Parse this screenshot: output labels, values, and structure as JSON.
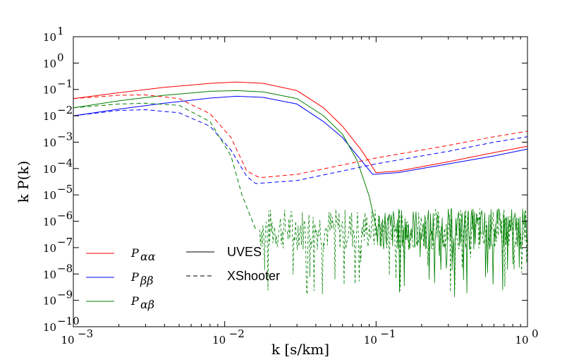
{
  "chart_data": {
    "type": "line",
    "xlabel": "k [s/km]",
    "ylabel": "k P(k)",
    "x_scale": "log",
    "y_scale": "log",
    "xlim": [
      0.001,
      1.0
    ],
    "ylim": [
      1e-10,
      10
    ],
    "grid": false,
    "legend_placement": "bottom-left",
    "x_ticks": [
      {
        "base": "10",
        "exp": "−3",
        "value": 0.001
      },
      {
        "base": "10",
        "exp": "−2",
        "value": 0.01
      },
      {
        "base": "10",
        "exp": "−1",
        "value": 0.1
      },
      {
        "base": "10",
        "exp": "0",
        "value": 1
      }
    ],
    "y_ticks": [
      {
        "base": "10",
        "exp": "1",
        "value": 10
      },
      {
        "base": "10",
        "exp": "0",
        "value": 1
      },
      {
        "base": "10",
        "exp": "−1",
        "value": 0.1
      },
      {
        "base": "10",
        "exp": "−2",
        "value": 0.01
      },
      {
        "base": "10",
        "exp": "−3",
        "value": 0.001
      },
      {
        "base": "10",
        "exp": "−4",
        "value": 0.0001
      },
      {
        "base": "10",
        "exp": "−5",
        "value": 1e-05
      },
      {
        "base": "10",
        "exp": "−6",
        "value": 1e-06
      },
      {
        "base": "10",
        "exp": "−7",
        "value": 1e-07
      },
      {
        "base": "10",
        "exp": "−8",
        "value": 1e-08
      },
      {
        "base": "10",
        "exp": "−9",
        "value": 1e-09
      },
      {
        "base": "10",
        "exp": "−10",
        "value": 1e-10
      }
    ],
    "legend": [
      {
        "label_main": "P",
        "label_sub": "αα",
        "color": "#ff0000",
        "dash": "solid"
      },
      {
        "label_main": "P",
        "label_sub": "ββ",
        "color": "#0000ff",
        "dash": "solid"
      },
      {
        "label_main": "P",
        "label_sub": "αβ",
        "color": "#008000",
        "dash": "solid"
      },
      {
        "label": "UVES",
        "color": "#000000",
        "dash": "solid"
      },
      {
        "label": "XShooter",
        "color": "#000000",
        "dash": "dashed"
      }
    ],
    "series": [
      {
        "key": "aa",
        "instrument": "UVES",
        "color": "#ff0000",
        "dash": "solid",
        "points": [
          [
            0.001,
            0.045
          ],
          [
            0.002,
            0.075
          ],
          [
            0.004,
            0.12
          ],
          [
            0.008,
            0.17
          ],
          [
            0.012,
            0.19
          ],
          [
            0.018,
            0.17
          ],
          [
            0.03,
            0.09
          ],
          [
            0.045,
            0.02
          ],
          [
            0.06,
            0.004
          ],
          [
            0.08,
            0.0005
          ],
          [
            0.1,
            7e-05
          ],
          [
            0.14,
            8e-05
          ],
          [
            0.3,
            0.00018
          ],
          [
            0.6,
            0.0004
          ],
          [
            1.0,
            0.0007
          ]
        ]
      },
      {
        "key": "bb",
        "instrument": "UVES",
        "color": "#0000ff",
        "dash": "solid",
        "points": [
          [
            0.001,
            0.01
          ],
          [
            0.002,
            0.018
          ],
          [
            0.004,
            0.03
          ],
          [
            0.008,
            0.047
          ],
          [
            0.012,
            0.055
          ],
          [
            0.018,
            0.05
          ],
          [
            0.03,
            0.028
          ],
          [
            0.045,
            0.006
          ],
          [
            0.06,
            0.0015
          ],
          [
            0.08,
            0.0002
          ],
          [
            0.095,
            6e-05
          ],
          [
            0.14,
            7e-05
          ],
          [
            0.3,
            0.00015
          ],
          [
            0.6,
            0.0003
          ],
          [
            1.0,
            0.00055
          ]
        ]
      },
      {
        "key": "ab",
        "instrument": "UVES",
        "color": "#008000",
        "dash": "solid",
        "points": [
          [
            0.001,
            0.02
          ],
          [
            0.002,
            0.037
          ],
          [
            0.004,
            0.06
          ],
          [
            0.008,
            0.085
          ],
          [
            0.012,
            0.09
          ],
          [
            0.018,
            0.08
          ],
          [
            0.03,
            0.045
          ],
          [
            0.045,
            0.01
          ],
          [
            0.06,
            0.002
          ],
          [
            0.075,
            0.0002
          ],
          [
            0.09,
            9e-06
          ],
          [
            0.1,
            6e-07
          ]
        ]
      },
      {
        "key": "aa",
        "instrument": "XShooter",
        "color": "#ff0000",
        "dash": "dashed",
        "points": [
          [
            0.001,
            0.045
          ],
          [
            0.002,
            0.06
          ],
          [
            0.003,
            0.062
          ],
          [
            0.005,
            0.045
          ],
          [
            0.008,
            0.012
          ],
          [
            0.011,
            0.0015
          ],
          [
            0.014,
            8e-05
          ],
          [
            0.017,
            4.5e-05
          ],
          [
            0.03,
            6e-05
          ],
          [
            0.1,
            0.00025
          ],
          [
            0.3,
            0.00075
          ],
          [
            0.6,
            0.0016
          ],
          [
            1.0,
            0.0026
          ]
        ]
      },
      {
        "key": "bb",
        "instrument": "XShooter",
        "color": "#0000ff",
        "dash": "dashed",
        "points": [
          [
            0.001,
            0.01
          ],
          [
            0.002,
            0.016
          ],
          [
            0.003,
            0.017
          ],
          [
            0.005,
            0.013
          ],
          [
            0.008,
            0.004
          ],
          [
            0.011,
            0.0005
          ],
          [
            0.014,
            5e-05
          ],
          [
            0.016,
            2.7e-05
          ],
          [
            0.03,
            3.5e-05
          ],
          [
            0.1,
            0.00015
          ],
          [
            0.3,
            0.00045
          ],
          [
            0.6,
            0.001
          ],
          [
            1.0,
            0.0016
          ]
        ]
      },
      {
        "key": "ab",
        "instrument": "XShooter",
        "color": "#008000",
        "dash": "dashed",
        "points": [
          [
            0.001,
            0.02
          ],
          [
            0.002,
            0.028
          ],
          [
            0.003,
            0.03
          ],
          [
            0.005,
            0.025
          ],
          [
            0.008,
            0.006
          ],
          [
            0.011,
            0.0003
          ],
          [
            0.013,
            1e-05
          ],
          [
            0.016,
            5e-07
          ]
        ]
      }
    ]
  }
}
